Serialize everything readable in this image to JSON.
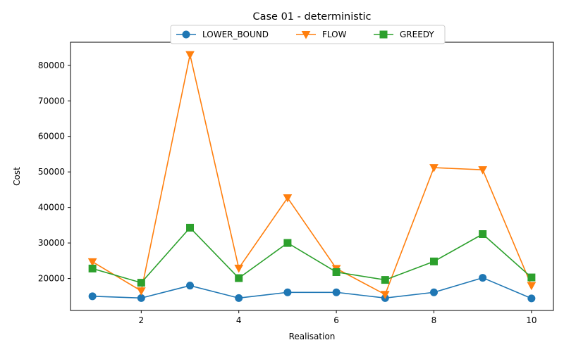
{
  "chart_data": {
    "type": "line",
    "title": "Case 01 - deterministic",
    "xlabel": "Realisation",
    "ylabel": "Cost",
    "x": [
      1,
      2,
      3,
      4,
      5,
      6,
      7,
      8,
      9,
      10
    ],
    "xlim": [
      0.55,
      10.45
    ],
    "ylim": [
      11000,
      86500
    ],
    "xticks": [
      2,
      4,
      6,
      8,
      10
    ],
    "yticks": [
      20000,
      30000,
      40000,
      50000,
      60000,
      70000,
      80000
    ],
    "grid": false,
    "legend_position": "top-center",
    "series": [
      {
        "name": "LOWER_BOUND",
        "color": "#1f77b4",
        "marker": "circle",
        "values": [
          15000,
          14500,
          18000,
          14500,
          16100,
          16100,
          14500,
          16100,
          20200,
          14400
        ]
      },
      {
        "name": "FLOW",
        "color": "#ff7f0e",
        "marker": "triangle-down",
        "values": [
          24700,
          16500,
          83000,
          22900,
          42700,
          22800,
          15500,
          51200,
          50600,
          18000
        ]
      },
      {
        "name": "GREEDY",
        "color": "#2ca02c",
        "marker": "square",
        "values": [
          22800,
          18800,
          34300,
          20100,
          30000,
          21800,
          19600,
          24800,
          32500,
          20300
        ]
      }
    ]
  }
}
